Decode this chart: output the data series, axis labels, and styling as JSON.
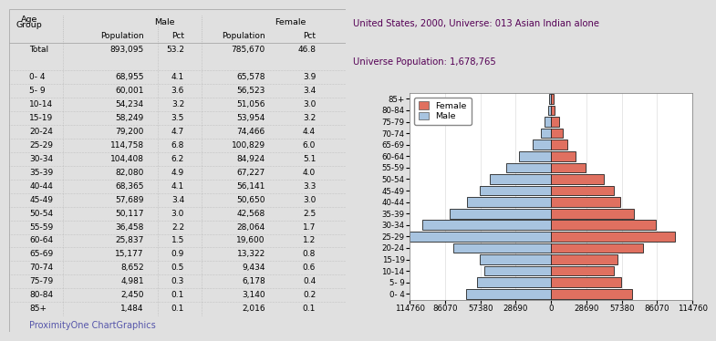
{
  "title_line1": "United States, 2000, Universe: 013 Asian Indian alone",
  "title_line2": "Universe Population: 1,678,765",
  "age_groups_bottom_up": [
    "0- 4",
    "5- 9",
    "10-14",
    "15-19",
    "20-24",
    "25-29",
    "30-34",
    "35-39",
    "40-44",
    "45-49",
    "50-54",
    "55-59",
    "60-64",
    "65-69",
    "70-74",
    "75-79",
    "80-84",
    "85+"
  ],
  "age_groups_top_down": [
    "85+",
    "80-84",
    "75-79",
    "70-74",
    "65-69",
    "60-64",
    "55-59",
    "50-54",
    "45-49",
    "40-44",
    "35-39",
    "30-34",
    "25-29",
    "20-24",
    "15-19",
    "10-14",
    "5- 9",
    "0- 4"
  ],
  "male_pop_top_down": [
    1484,
    2450,
    4981,
    8652,
    15177,
    25837,
    36458,
    50117,
    57689,
    68365,
    82080,
    104408,
    114758,
    79200,
    58249,
    54234,
    60001,
    68955
  ],
  "female_pop_top_down": [
    2016,
    3140,
    6178,
    9434,
    13322,
    19600,
    28064,
    42568,
    50650,
    56141,
    67227,
    84924,
    100829,
    74466,
    53954,
    51056,
    56523,
    65578
  ],
  "male_color": "#a8c4e0",
  "female_color": "#e07060",
  "bar_edge_color": "#222222",
  "bar_edge_width": 0.6,
  "xlim": 114760,
  "xtick_vals": [
    -114760,
    -86070,
    -57380,
    -28690,
    0,
    28690,
    57380,
    86070,
    114760
  ],
  "xtick_labels": [
    "114760",
    "86070",
    "57380",
    "28690",
    "0",
    "28690",
    "57380",
    "86070",
    "114760"
  ],
  "bg_color": "#e0e0e0",
  "plot_bg": "#ffffff",
  "title_color": "#550055",
  "grid_color": "#b8b8c8",
  "footer_text": "ProximityOne ChartGraphics",
  "footer_color": "#5555aa",
  "table_rows": [
    [
      "Total",
      "893,095",
      "53.2",
      "785,670",
      "46.8"
    ],
    [
      "0- 4",
      "68,955",
      "4.1",
      "65,578",
      "3.9"
    ],
    [
      "5- 9",
      "60,001",
      "3.6",
      "56,523",
      "3.4"
    ],
    [
      "10-14",
      "54,234",
      "3.2",
      "51,056",
      "3.0"
    ],
    [
      "15-19",
      "58,249",
      "3.5",
      "53,954",
      "3.2"
    ],
    [
      "20-24",
      "79,200",
      "4.7",
      "74,466",
      "4.4"
    ],
    [
      "25-29",
      "114,758",
      "6.8",
      "100,829",
      "6.0"
    ],
    [
      "30-34",
      "104,408",
      "6.2",
      "84,924",
      "5.1"
    ],
    [
      "35-39",
      "82,080",
      "4.9",
      "67,227",
      "4.0"
    ],
    [
      "40-44",
      "68,365",
      "4.1",
      "56,141",
      "3.3"
    ],
    [
      "45-49",
      "57,689",
      "3.4",
      "50,650",
      "3.0"
    ],
    [
      "50-54",
      "50,117",
      "3.0",
      "42,568",
      "2.5"
    ],
    [
      "55-59",
      "36,458",
      "2.2",
      "28,064",
      "1.7"
    ],
    [
      "60-64",
      "25,837",
      "1.5",
      "19,600",
      "1.2"
    ],
    [
      "65-69",
      "15,177",
      "0.9",
      "13,322",
      "0.8"
    ],
    [
      "70-74",
      "8,652",
      "0.5",
      "9,434",
      "0.6"
    ],
    [
      "75-79",
      "4,981",
      "0.3",
      "6,178",
      "0.4"
    ],
    [
      "80-84",
      "2,450",
      "0.1",
      "3,140",
      "0.2"
    ],
    [
      "85+",
      "1,484",
      "0.1",
      "2,016",
      "0.1"
    ]
  ]
}
